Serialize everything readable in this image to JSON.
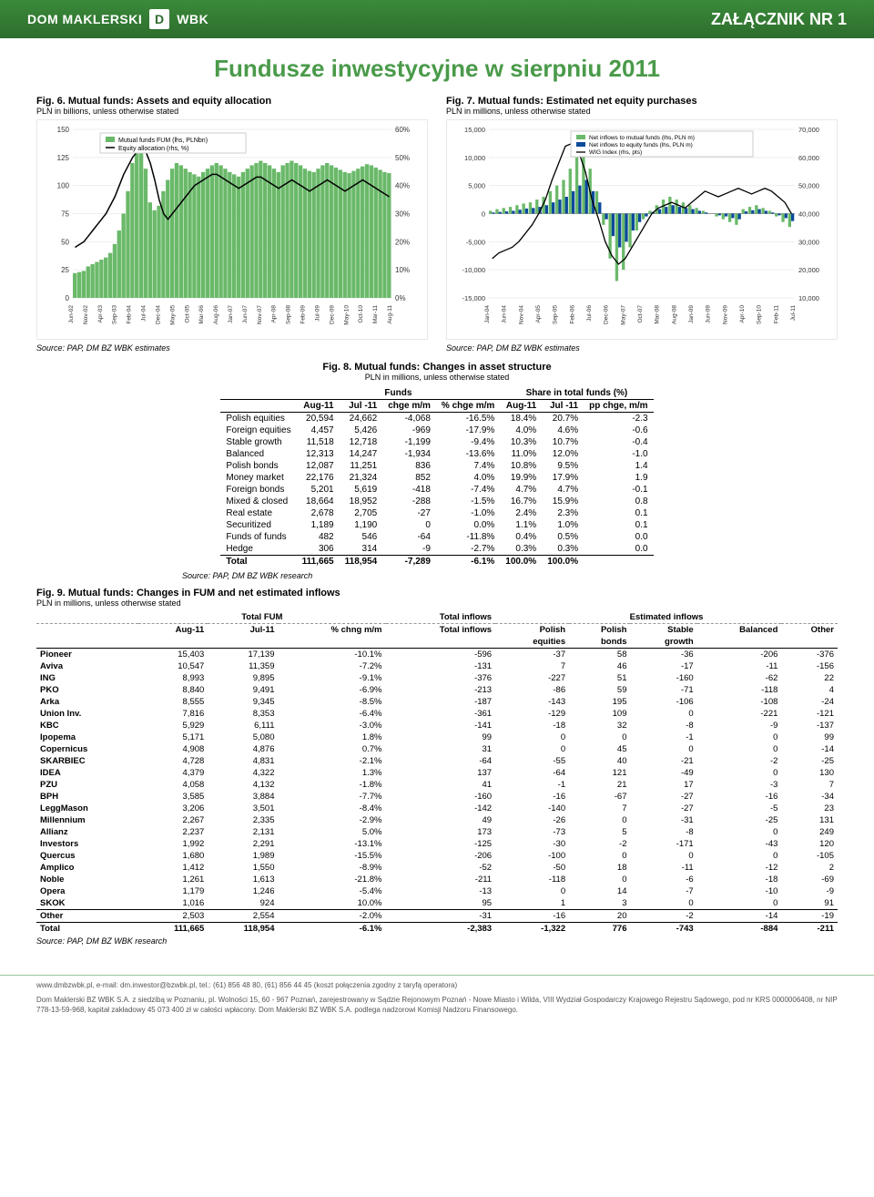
{
  "header": {
    "brand1": "DOM MAKLERSKI",
    "brand2": "WBK",
    "logo_letter": "D",
    "attachment": "ZAŁĄCZNIK NR 1",
    "bg_gradient_top": "#3a8a3a",
    "bg_gradient_bottom": "#2d6d2d"
  },
  "title": "Fundusze inwestycyjne w sierpniu 2011",
  "title_color": "#4a9a4a",
  "fig6": {
    "caption": "Fig. 6. Mutual funds: Assets and equity allocation",
    "sub": "PLN in billions, unless otherwise stated",
    "legend": [
      "Mutual funds FUM (lhs, PLNbn)",
      "Equity allocation (rhs, %)"
    ],
    "legend_colors": [
      "#6ab96a",
      "#000000"
    ],
    "y_left": {
      "min": 0,
      "max": 150,
      "step": 25
    },
    "y_right": {
      "min": 0,
      "max": 60,
      "step": 10,
      "suffix": "%"
    },
    "x_labels": [
      "Jun-02",
      "Nov-02",
      "Apr-03",
      "Sep-03",
      "Feb-04",
      "Jul-04",
      "Dec-04",
      "May-05",
      "Oct-05",
      "Mar-06",
      "Aug-06",
      "Jan-07",
      "Jun-07",
      "Nov-07",
      "Apr-08",
      "Sep-08",
      "Feb-09",
      "Jul-09",
      "Dec-09",
      "May-10",
      "Oct-10",
      "Mar-11",
      "Aug-11"
    ],
    "bar_color": "#6ab96a",
    "line_color": "#000000",
    "bars": [
      22,
      23,
      24,
      28,
      30,
      32,
      34,
      36,
      40,
      48,
      60,
      75,
      95,
      120,
      135,
      140,
      115,
      85,
      78,
      82,
      95,
      105,
      115,
      120,
      118,
      115,
      112,
      110,
      108,
      112,
      115,
      118,
      120,
      118,
      115,
      112,
      110,
      108,
      112,
      115,
      118,
      120,
      122,
      120,
      118,
      115,
      112,
      118,
      120,
      122,
      120,
      118,
      115,
      113,
      112,
      115,
      118,
      120,
      118,
      116,
      114,
      112,
      111,
      113,
      115,
      117,
      119,
      118,
      116,
      114,
      112,
      111
    ],
    "line": [
      18,
      19,
      20,
      22,
      24,
      26,
      28,
      30,
      33,
      36,
      40,
      44,
      47,
      50,
      52,
      54,
      52,
      48,
      42,
      35,
      30,
      28,
      30,
      32,
      34,
      36,
      38,
      40,
      41,
      42,
      43,
      44,
      44,
      43,
      42,
      41,
      40,
      39,
      40,
      41,
      42,
      43,
      43,
      42,
      41,
      40,
      39,
      40,
      41,
      42,
      41,
      40,
      39,
      38,
      39,
      40,
      41,
      42,
      41,
      40,
      39,
      38,
      39,
      40,
      41,
      42,
      41,
      40,
      39,
      38,
      37,
      36
    ],
    "source": "Source: PAP, DM BZ WBK estimates"
  },
  "fig7": {
    "caption": "Fig. 7. Mutual funds: Estimated net equity purchases",
    "sub": "PLN in millions, unless otherwise stated",
    "legend": [
      "Net inflows to mutual funds (lhs, PLN m)",
      "Net inflows to equity funds (lhs, PLN m)",
      "WIG Index (rhs, pts)"
    ],
    "legend_colors": [
      "#6ab96a",
      "#0a4a9a",
      "#000000"
    ],
    "y_left": {
      "min": -15000,
      "max": 15000,
      "step": 5000
    },
    "y_right": {
      "min": 10000,
      "max": 70000,
      "step": 10000
    },
    "x_labels": [
      "Jan-04",
      "Jun-04",
      "Nov-04",
      "Apr-05",
      "Sep-05",
      "Feb-06",
      "Jul-06",
      "Dec-06",
      "May-07",
      "Oct-07",
      "Mar-08",
      "Aug-08",
      "Jan-09",
      "Jun-09",
      "Nov-09",
      "Apr-10",
      "Sep-10",
      "Feb-11",
      "Jul-11"
    ],
    "bar1_color": "#6ab96a",
    "bar2_color": "#0a4a9a",
    "line_color": "#000000",
    "bars1": [
      500,
      800,
      1000,
      1200,
      1500,
      1800,
      2000,
      2500,
      3000,
      4000,
      5000,
      6000,
      8000,
      10000,
      12000,
      8000,
      4000,
      -2000,
      -8000,
      -12000,
      -10000,
      -6000,
      -3000,
      -1000,
      500,
      1500,
      2500,
      3000,
      2500,
      2000,
      1500,
      1000,
      500,
      0,
      -500,
      -1000,
      -1500,
      -2000,
      800,
      1200,
      1500,
      1000,
      500,
      -500,
      -1500,
      -2383
    ],
    "bars2": [
      200,
      300,
      400,
      500,
      700,
      900,
      1000,
      1200,
      1500,
      2000,
      2500,
      3000,
      4000,
      5000,
      6000,
      4000,
      2000,
      -1000,
      -4000,
      -6000,
      -5000,
      -3000,
      -1500,
      -500,
      300,
      800,
      1200,
      1500,
      1200,
      1000,
      800,
      500,
      200,
      0,
      -300,
      -500,
      -800,
      -1000,
      400,
      600,
      800,
      500,
      200,
      -300,
      -800,
      -1322
    ],
    "line": [
      24000,
      26000,
      27000,
      28000,
      30000,
      33000,
      36000,
      40000,
      45000,
      52000,
      58000,
      64000,
      65000,
      62000,
      55000,
      45000,
      38000,
      30000,
      25000,
      22000,
      24000,
      28000,
      32000,
      36000,
      40000,
      42000,
      43000,
      44000,
      43000,
      42000,
      44000,
      46000,
      48000,
      47000,
      46000,
      47000,
      48000,
      49000,
      48000,
      47000,
      48000,
      49000,
      48000,
      46000,
      44000,
      40000
    ],
    "source": "Source: PAP, DM BZ WBK estimates"
  },
  "fig8": {
    "caption": "Fig. 8. Mutual funds: Changes in asset structure",
    "sub": "PLN in millions, unless otherwise stated",
    "group_hdr_funds": "Funds",
    "group_hdr_share": "Share in total funds (%)",
    "columns": [
      "",
      "Aug-11",
      "Jul -11",
      "chge m/m",
      "% chge m/m",
      "Aug-11",
      "Jul -11",
      "pp chge, m/m"
    ],
    "rows": [
      [
        "Polish equities",
        "20,594",
        "24,662",
        "-4,068",
        "-16.5%",
        "18.4%",
        "20.7%",
        "-2.3"
      ],
      [
        "Foreign equities",
        "4,457",
        "5,426",
        "-969",
        "-17.9%",
        "4.0%",
        "4.6%",
        "-0.6"
      ],
      [
        "Stable growth",
        "11,518",
        "12,718",
        "-1,199",
        "-9.4%",
        "10.3%",
        "10.7%",
        "-0.4"
      ],
      [
        "Balanced",
        "12,313",
        "14,247",
        "-1,934",
        "-13.6%",
        "11.0%",
        "12.0%",
        "-1.0"
      ],
      [
        "Polish bonds",
        "12,087",
        "11,251",
        "836",
        "7.4%",
        "10.8%",
        "9.5%",
        "1.4"
      ],
      [
        "Money market",
        "22,176",
        "21,324",
        "852",
        "4.0%",
        "19.9%",
        "17.9%",
        "1.9"
      ],
      [
        "Foreign bonds",
        "5,201",
        "5,619",
        "-418",
        "-7.4%",
        "4.7%",
        "4.7%",
        "-0.1"
      ],
      [
        "Mixed & closed",
        "18,664",
        "18,952",
        "-288",
        "-1.5%",
        "16.7%",
        "15.9%",
        "0.8"
      ],
      [
        "Real estate",
        "2,678",
        "2,705",
        "-27",
        "-1.0%",
        "2.4%",
        "2.3%",
        "0.1"
      ],
      [
        "Securitized",
        "1,189",
        "1,190",
        "0",
        "0.0%",
        "1.1%",
        "1.0%",
        "0.1"
      ],
      [
        "Funds of funds",
        "482",
        "546",
        "-64",
        "-11.8%",
        "0.4%",
        "0.5%",
        "0.0"
      ],
      [
        "Hedge",
        "306",
        "314",
        "-9",
        "-2.7%",
        "0.3%",
        "0.3%",
        "0.0"
      ]
    ],
    "total": [
      "Total",
      "111,665",
      "118,954",
      "-7,289",
      "-6.1%",
      "100.0%",
      "100.0%",
      ""
    ],
    "source": "Source: PAP, DM BZ WBK research"
  },
  "fig9": {
    "caption": "Fig. 9. Mutual funds: Changes in FUM and net estimated inflows",
    "sub": "PLN in millions, unless otherwise stated",
    "hdr_total_fum": "Total FUM",
    "hdr_est_inflows": "Estimated inflows",
    "hdr_total_inflows": "Total inflows",
    "columns": [
      "",
      "Aug-11",
      "Jul-11",
      "% chng m/m",
      "",
      "Polish equities",
      "Polish bonds",
      "Stable growth",
      "Balanced",
      "Other"
    ],
    "sub_cols": [
      "",
      "Aug-11",
      "Jul-11",
      "% chng m/m",
      "Total inflows",
      "Polish",
      "Polish",
      "Stable",
      "Balanced",
      "Other"
    ],
    "sub_cols2": [
      "",
      "",
      "",
      "",
      "",
      "equities",
      "bonds",
      "growth",
      "",
      ""
    ],
    "rows": [
      [
        "Pioneer",
        "15,403",
        "17,139",
        "-10.1%",
        "-596",
        "-37",
        "58",
        "-36",
        "-206",
        "-376"
      ],
      [
        "Aviva",
        "10,547",
        "11,359",
        "-7.2%",
        "-131",
        "7",
        "46",
        "-17",
        "-11",
        "-156"
      ],
      [
        "ING",
        "8,993",
        "9,895",
        "-9.1%",
        "-376",
        "-227",
        "51",
        "-160",
        "-62",
        "22"
      ],
      [
        "PKO",
        "8,840",
        "9,491",
        "-6.9%",
        "-213",
        "-86",
        "59",
        "-71",
        "-118",
        "4"
      ],
      [
        "Arka",
        "8,555",
        "9,345",
        "-8.5%",
        "-187",
        "-143",
        "195",
        "-106",
        "-108",
        "-24"
      ],
      [
        "Union Inv.",
        "7,816",
        "8,353",
        "-6.4%",
        "-361",
        "-129",
        "109",
        "0",
        "-221",
        "-121"
      ],
      [
        "KBC",
        "5,929",
        "6,111",
        "-3.0%",
        "-141",
        "-18",
        "32",
        "-8",
        "-9",
        "-137"
      ],
      [
        "Ipopema",
        "5,171",
        "5,080",
        "1.8%",
        "99",
        "0",
        "0",
        "-1",
        "0",
        "99"
      ],
      [
        "Copernicus",
        "4,908",
        "4,876",
        "0.7%",
        "31",
        "0",
        "45",
        "0",
        "0",
        "-14"
      ],
      [
        "SKARBIEC",
        "4,728",
        "4,831",
        "-2.1%",
        "-64",
        "-55",
        "40",
        "-21",
        "-2",
        "-25"
      ],
      [
        "IDEA",
        "4,379",
        "4,322",
        "1.3%",
        "137",
        "-64",
        "121",
        "-49",
        "0",
        "130"
      ],
      [
        "PZU",
        "4,058",
        "4,132",
        "-1.8%",
        "41",
        "-1",
        "21",
        "17",
        "-3",
        "7"
      ],
      [
        "BPH",
        "3,585",
        "3,884",
        "-7.7%",
        "-160",
        "-16",
        "-67",
        "-27",
        "-16",
        "-34"
      ],
      [
        "LeggMason",
        "3,206",
        "3,501",
        "-8.4%",
        "-142",
        "-140",
        "7",
        "-27",
        "-5",
        "23"
      ],
      [
        "Millennium",
        "2,267",
        "2,335",
        "-2.9%",
        "49",
        "-26",
        "0",
        "-31",
        "-25",
        "131"
      ],
      [
        "Allianz",
        "2,237",
        "2,131",
        "5.0%",
        "173",
        "-73",
        "5",
        "-8",
        "0",
        "249"
      ],
      [
        "Investors",
        "1,992",
        "2,291",
        "-13.1%",
        "-125",
        "-30",
        "-2",
        "-171",
        "-43",
        "120"
      ],
      [
        "Quercus",
        "1,680",
        "1,989",
        "-15.5%",
        "-206",
        "-100",
        "0",
        "0",
        "0",
        "-105"
      ],
      [
        "Amplico",
        "1,412",
        "1,550",
        "-8.9%",
        "-52",
        "-50",
        "18",
        "-11",
        "-12",
        "2"
      ],
      [
        "Noble",
        "1,261",
        "1,613",
        "-21.8%",
        "-211",
        "-118",
        "0",
        "-6",
        "-18",
        "-69"
      ],
      [
        "Opera",
        "1,179",
        "1,246",
        "-5.4%",
        "-13",
        "0",
        "14",
        "-7",
        "-10",
        "-9"
      ],
      [
        "SKOK",
        "1,016",
        "924",
        "10.0%",
        "95",
        "1",
        "3",
        "0",
        "0",
        "91"
      ]
    ],
    "other_row": [
      "Other",
      "2,503",
      "2,554",
      "-2.0%",
      "-31",
      "-16",
      "20",
      "-2",
      "-14",
      "-19"
    ],
    "total": [
      "Total",
      "111,665",
      "118,954",
      "-6.1%",
      "-2,383",
      "-1,322",
      "776",
      "-743",
      "-884",
      "-211"
    ],
    "source": "Source: PAP, DM BZ WBK research"
  },
  "footer": {
    "line1": "www.dmbzwbk.pl, e-mail: dm.inwestor@bzwbk.pl, tel.: (61) 856 48 80, (61) 856 44 45 (koszt połączenia zgodny z taryfą operatora)",
    "line2": "Dom Maklerski BZ WBK S.A. z siedzibą w Poznaniu, pl. Wolności 15, 60 - 967 Poznań, zarejestrowany w Sądzie Rejonowym Poznań - Nowe Miasto i Wilda, VIII Wydział Gospodarczy Krajowego Rejestru Sądowego, pod nr KRS 0000006408, nr NIP 778-13-59-968, kapitał zakładowy 45 073 400  zł w całości wpłacony. Dom Maklerski BZ WBK S.A. podlega nadzorowi Komisji Nadzoru Finansowego."
  }
}
